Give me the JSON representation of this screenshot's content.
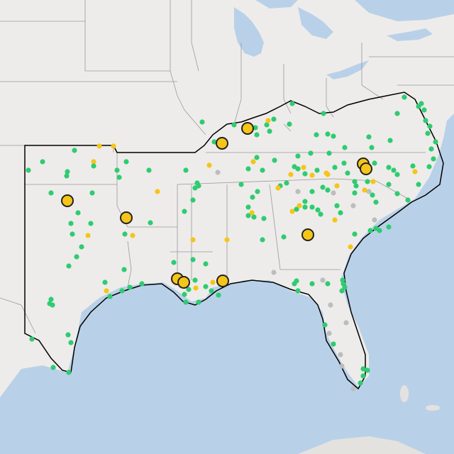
{
  "map": {
    "colors": {
      "land": "#eeecea",
      "water": "#b9d1e8",
      "lake": "#b9d1e8",
      "state_border": "#9a9a9a",
      "region_outline": "#000000",
      "marker_green": "#2ecc71",
      "marker_yellow": "#f5c518",
      "marker_gray": "#bdbdbd",
      "marker_large_fill": "#f5c518",
      "marker_large_stroke": "#222222"
    },
    "layers": [
      "basemap",
      "region-outline",
      "site-markers",
      "major-site-markers"
    ],
    "legend": null
  }
}
